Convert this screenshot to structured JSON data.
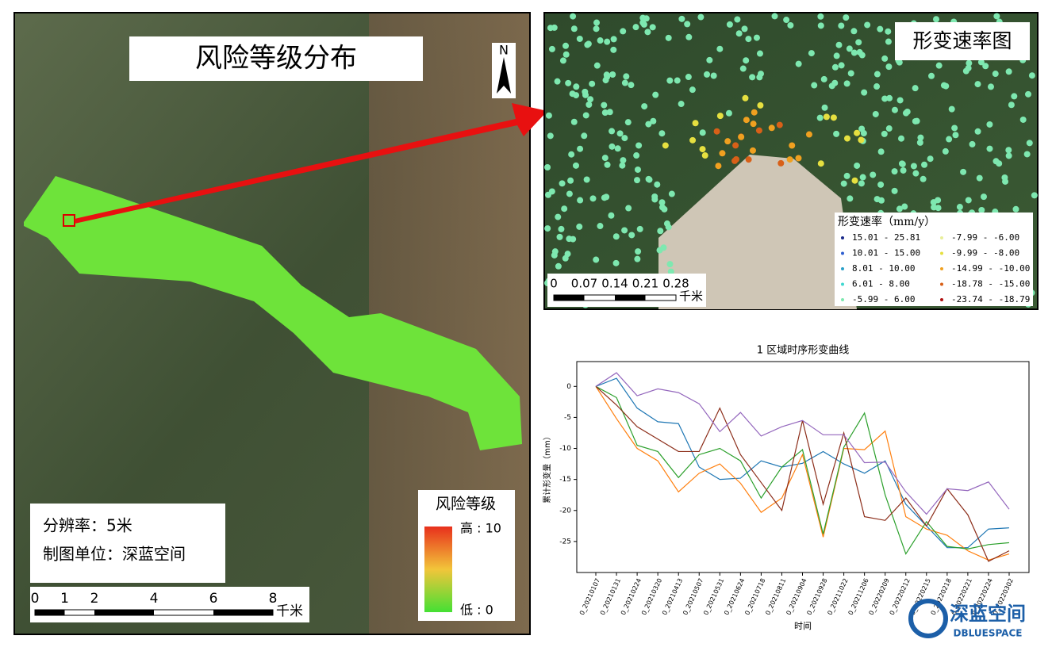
{
  "risk_map": {
    "title": "风险等级分布",
    "north": "N",
    "resolution": "分辨率：5米",
    "mapper": "制图单位：深蓝空间",
    "legend_title": "风险等级",
    "high_label": "高 : 10",
    "low_label": "低 : 0",
    "scale_ticks": [
      0,
      1,
      2,
      4,
      6,
      8
    ],
    "scale_unit": "千米"
  },
  "deformation_map": {
    "title": "形变速率图",
    "legend_title": "形变速率（mm/y）",
    "legend": [
      {
        "label": "15.01 - 25.81",
        "color": "#1a2a8a"
      },
      {
        "label": "-7.99 - -6.00",
        "color": "#e8ee9a"
      },
      {
        "label": "10.01 - 15.00",
        "color": "#2f5fd0"
      },
      {
        "label": "-9.99 - -8.00",
        "color": "#e6e040"
      },
      {
        "label": "8.01 - 10.00",
        "color": "#2aa0c8"
      },
      {
        "label": "-14.99 - -10.00",
        "color": "#f0a020"
      },
      {
        "label": "6.01 - 8.00",
        "color": "#40d8d0"
      },
      {
        "label": "-18.78 - -15.00",
        "color": "#d86018"
      },
      {
        "label": "-5.99 - 6.00",
        "color": "#7ee8b0"
      },
      {
        "label": "-23.74 - -18.79",
        "color": "#b01010"
      }
    ],
    "scale_ticks": [
      0,
      0.07,
      0.14,
      0.21,
      0.28
    ],
    "scale_unit": "千米"
  },
  "chart_data": {
    "type": "line",
    "title": "1 区域时序形变曲线",
    "x_label": "时间",
    "y_label": "累计形变量（mm）",
    "categories": [
      "0_20210107",
      "0_20210131",
      "0_20210224",
      "0_20210320",
      "0_20210413",
      "0_20210507",
      "0_20210531",
      "0_20210624",
      "0_20210718",
      "0_20210811",
      "0_20210904",
      "0_20210928",
      "0_20211022",
      "0_20211206",
      "0_20220209",
      "0_20220212",
      "0_20220215",
      "0_20220218",
      "0_20220221",
      "0_20220224",
      "0_20220302"
    ],
    "series": [
      {
        "color": "#1f77b4",
        "values": [
          0,
          1.3,
          -3.5,
          -5.7,
          -6,
          -13,
          -15,
          -14.8,
          -12,
          -13,
          -12.4,
          -10.5,
          -12.5,
          -14,
          -12,
          -19,
          -22.5,
          -26,
          -26,
          -23,
          -22.8
        ]
      },
      {
        "color": "#ff7f0e",
        "values": [
          0,
          -5.2,
          -10,
          -12,
          -17,
          -14,
          -12.5,
          -15.6,
          -20.3,
          -18,
          -11,
          -24.3,
          -10,
          -10.2,
          -7.2,
          -21,
          -23,
          -24,
          -26.5,
          -28,
          -27
        ]
      },
      {
        "color": "#2ca02c",
        "values": [
          0,
          -1.8,
          -9.5,
          -10.5,
          -14.7,
          -11,
          -10,
          -12,
          -18,
          -13,
          -10.2,
          -23.8,
          -9.8,
          -4.3,
          -17.5,
          -27,
          -21.8,
          -25.8,
          -26.2,
          -25.5,
          -25.2
        ]
      },
      {
        "color": "#8c2d19",
        "values": [
          0,
          -3,
          -6.5,
          -8.5,
          -10.5,
          -10.5,
          -3.5,
          -11,
          -15.5,
          -20,
          -5.5,
          -19,
          -7.5,
          -21,
          -21.6,
          -18,
          -22.5,
          -16.5,
          -20.7,
          -28.2,
          -26.5
        ]
      },
      {
        "color": "#9467bd",
        "values": [
          0,
          2.2,
          -1.5,
          -0.4,
          -1,
          -2.8,
          -7.3,
          -4.2,
          -8,
          -6.5,
          -5.5,
          -7.8,
          -7.8,
          -12.3,
          -12.2,
          -17,
          -20.6,
          -16.5,
          -16.8,
          -15.4,
          -19.8
        ]
      }
    ],
    "ylim": [
      -30,
      4
    ],
    "yticks": [
      0,
      -5,
      -10,
      -15,
      -20,
      -25
    ]
  },
  "logo": {
    "name": "深蓝空间",
    "latin": "DBLUESPACE"
  }
}
